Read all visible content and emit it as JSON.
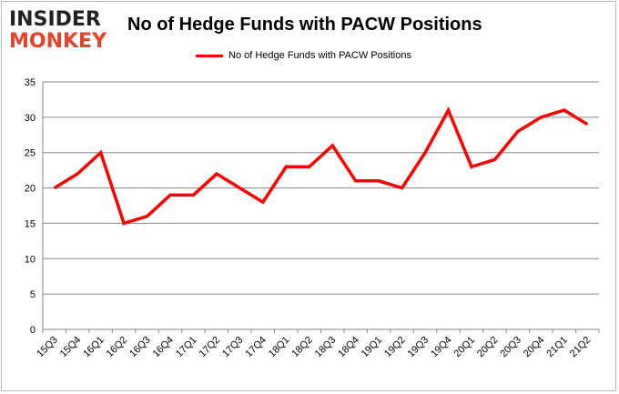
{
  "logo": {
    "line1": "INSIDER",
    "line2": "MONKEY"
  },
  "chart_data": {
    "type": "line",
    "title": "No of Hedge Funds with PACW Positions",
    "xlabel": "",
    "ylabel": "",
    "categories": [
      "15Q3",
      "15Q4",
      "16Q1",
      "16Q2",
      "16Q3",
      "16Q4",
      "17Q1",
      "17Q2",
      "17Q3",
      "17Q4",
      "18Q1",
      "18Q2",
      "18Q3",
      "18Q4",
      "19Q1",
      "19Q2",
      "19Q3",
      "19Q4",
      "20Q1",
      "20Q2",
      "20Q3",
      "20Q4",
      "21Q1",
      "21Q2"
    ],
    "series": [
      {
        "name": "No of Hedge Funds with PACW Positions",
        "color": "#ff0000",
        "values": [
          20,
          22,
          25,
          15,
          16,
          19,
          19,
          22,
          20,
          18,
          23,
          23,
          26,
          21,
          21,
          20,
          25,
          31,
          23,
          24,
          28,
          30,
          31,
          29
        ]
      }
    ],
    "ylim": [
      0,
      35
    ],
    "yticks": [
      0,
      5,
      10,
      15,
      20,
      25,
      30,
      35
    ],
    "grid": true,
    "legend": "top-center"
  }
}
